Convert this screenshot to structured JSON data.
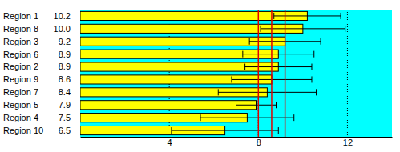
{
  "chart_data": {
    "type": "bar",
    "orientation": "horizontal",
    "categories": [
      "Region 1",
      "Region 8",
      "Region 3",
      "Region 6",
      "Region 2",
      "Region 9",
      "Region 7",
      "Region 5",
      "Region 4",
      "Region 10"
    ],
    "values": [
      10.2,
      10.0,
      9.2,
      8.9,
      8.9,
      8.6,
      8.4,
      7.9,
      7.5,
      6.5
    ],
    "value_labels": [
      "10.2",
      "10.0",
      "9.2",
      "8.9",
      "8.9",
      "8.6",
      "8.4",
      "7.9",
      "7.5",
      "6.5"
    ],
    "errors": [
      1.5,
      1.9,
      1.6,
      1.6,
      1.5,
      1.8,
      2.2,
      0.9,
      2.1,
      2.4
    ],
    "reference_lines": [
      8.0,
      8.6,
      9.2
    ],
    "color": "#ffff00",
    "xlim": [
      0,
      14
    ],
    "xticks": [
      4,
      8,
      12
    ],
    "grid": true,
    "data_labels": true
  }
}
